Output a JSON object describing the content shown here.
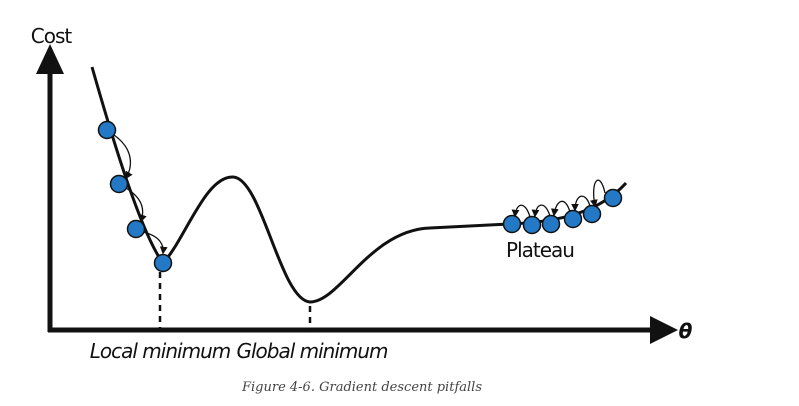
{
  "y_axis_label": "Cost",
  "x_axis_label": "θ",
  "annotations": {
    "local_minimum": "Local minimum",
    "global_minimum": "Global minimum",
    "plateau": "Plateau"
  },
  "caption": "Figure 4-6. Gradient descent pitfalls"
}
